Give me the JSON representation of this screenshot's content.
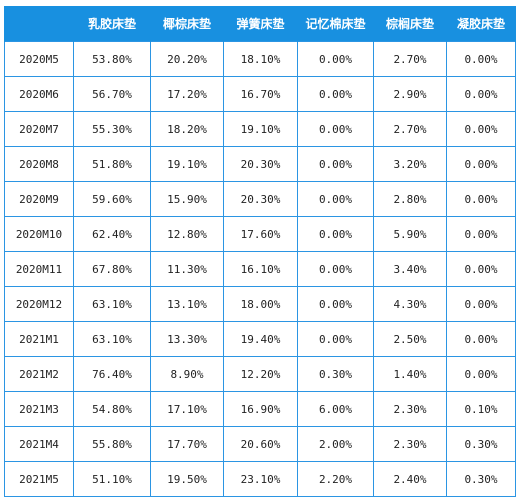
{
  "table": {
    "headers": [
      "",
      "乳胶床垫",
      "椰棕床垫",
      "弹簧床垫",
      "记忆棉床垫",
      "棕榈床垫",
      "凝胶床垫"
    ],
    "rows": [
      [
        "2020M5",
        "53.80%",
        "20.20%",
        "18.10%",
        "0.00%",
        "2.70%",
        "0.00%"
      ],
      [
        "2020M6",
        "56.70%",
        "17.20%",
        "16.70%",
        "0.00%",
        "2.90%",
        "0.00%"
      ],
      [
        "2020M7",
        "55.30%",
        "18.20%",
        "19.10%",
        "0.00%",
        "2.70%",
        "0.00%"
      ],
      [
        "2020M8",
        "51.80%",
        "19.10%",
        "20.30%",
        "0.00%",
        "3.20%",
        "0.00%"
      ],
      [
        "2020M9",
        "59.60%",
        "15.90%",
        "20.30%",
        "0.00%",
        "2.80%",
        "0.00%"
      ],
      [
        "2020M10",
        "62.40%",
        "12.80%",
        "17.60%",
        "0.00%",
        "5.90%",
        "0.00%"
      ],
      [
        "2020M11",
        "67.80%",
        "11.30%",
        "16.10%",
        "0.00%",
        "3.40%",
        "0.00%"
      ],
      [
        "2020M12",
        "63.10%",
        "13.10%",
        "18.00%",
        "0.00%",
        "4.30%",
        "0.00%"
      ],
      [
        "2021M1",
        "63.10%",
        "13.30%",
        "19.40%",
        "0.00%",
        "2.50%",
        "0.00%"
      ],
      [
        "2021M2",
        "76.40%",
        "8.90%",
        "12.20%",
        "0.30%",
        "1.40%",
        "0.00%"
      ],
      [
        "2021M3",
        "54.80%",
        "17.10%",
        "16.90%",
        "6.00%",
        "2.30%",
        "0.10%"
      ],
      [
        "2021M4",
        "55.80%",
        "17.70%",
        "20.60%",
        "2.00%",
        "2.30%",
        "0.30%"
      ],
      [
        "2021M5",
        "51.10%",
        "19.50%",
        "23.10%",
        "2.20%",
        "2.40%",
        "0.30%"
      ]
    ]
  },
  "colors": {
    "header_bg": "#1890e0",
    "header_text": "#ffffff",
    "grid": "#2b95e3",
    "cell_text": "#222222"
  }
}
